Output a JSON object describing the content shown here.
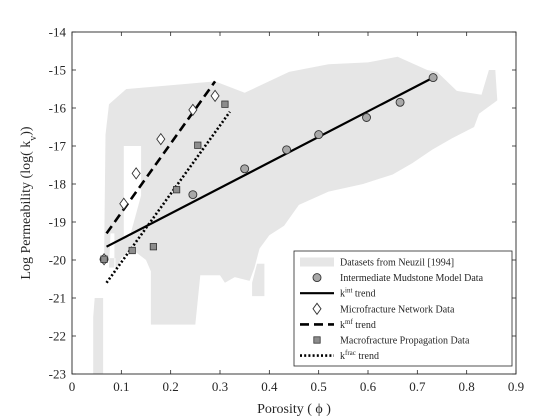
{
  "chart_data": {
    "type": "scatter",
    "xlabel": "Porosity ( ϕ )",
    "ylabel": "Log Permeability (log( k",
    "ylabel_sub": "v",
    "ylabel_end": "))",
    "xlim": [
      0,
      0.9
    ],
    "ylim": [
      -23,
      -14
    ],
    "xticks": [
      0,
      0.1,
      0.2,
      0.3,
      0.4,
      0.5,
      0.6,
      0.7,
      0.8,
      0.9
    ],
    "xtick_labels": [
      "0",
      "0.1",
      "0.2",
      "0.3",
      "0.4",
      "0.5",
      "0.6",
      "0.7",
      "0.8",
      "0.9"
    ],
    "yticks": [
      -23,
      -22,
      -21,
      -20,
      -19,
      -18,
      -17,
      -16,
      -15,
      -14
    ],
    "ytick_labels": [
      "-23",
      "-22",
      "-21",
      "-20",
      "-19",
      "-18",
      "-17",
      "-16",
      "-15",
      "-14"
    ],
    "grid": false,
    "legend_position": "bottom-right",
    "region": {
      "name": "Datasets from Neuzil [1994]",
      "color": "#e6e6e6",
      "polygons": [
        [
          [
            0.068,
            -16.7
          ],
          [
            0.075,
            -15.9
          ],
          [
            0.11,
            -15.5
          ],
          [
            0.2,
            -15.4
          ],
          [
            0.29,
            -15.3
          ],
          [
            0.35,
            -15.6
          ],
          [
            0.44,
            -15.05
          ],
          [
            0.52,
            -14.85
          ],
          [
            0.6,
            -14.8
          ],
          [
            0.66,
            -14.65
          ],
          [
            0.72,
            -15.0
          ],
          [
            0.74,
            -15.05
          ],
          [
            0.78,
            -15.55
          ],
          [
            0.83,
            -15.65
          ],
          [
            0.845,
            -15.0
          ],
          [
            0.858,
            -15.0
          ],
          [
            0.862,
            -15.8
          ],
          [
            0.825,
            -16.15
          ],
          [
            0.815,
            -16.5
          ],
          [
            0.77,
            -16.8
          ],
          [
            0.73,
            -17.1
          ],
          [
            0.69,
            -17.45
          ],
          [
            0.65,
            -17.75
          ],
          [
            0.59,
            -18.0
          ],
          [
            0.52,
            -18.2
          ],
          [
            0.46,
            -18.55
          ],
          [
            0.43,
            -19.1
          ],
          [
            0.4,
            -19.35
          ],
          [
            0.38,
            -19.7
          ],
          [
            0.37,
            -20.2
          ],
          [
            0.36,
            -20.55
          ],
          [
            0.33,
            -20.45
          ],
          [
            0.31,
            -20.6
          ],
          [
            0.3,
            -20.4
          ],
          [
            0.26,
            -20.4
          ],
          [
            0.25,
            -21.7
          ],
          [
            0.16,
            -21.7
          ],
          [
            0.16,
            -20.3
          ],
          [
            0.15,
            -20.0
          ],
          [
            0.12,
            -19.7
          ],
          [
            0.1,
            -19.95
          ],
          [
            0.088,
            -20.3
          ],
          [
            0.088,
            -19.95
          ],
          [
            0.065,
            -19.95
          ]
        ],
        [
          [
            0.365,
            -20.6
          ],
          [
            0.375,
            -20.1
          ],
          [
            0.39,
            -20.1
          ],
          [
            0.39,
            -20.95
          ],
          [
            0.365,
            -20.95
          ]
        ],
        [
          [
            0.075,
            -20.2
          ],
          [
            0.078,
            -19.3
          ],
          [
            0.086,
            -19.3
          ],
          [
            0.086,
            -20.2
          ]
        ],
        [
          [
            0.043,
            -23.0
          ],
          [
            0.043,
            -21.5
          ],
          [
            0.046,
            -21.0
          ],
          [
            0.063,
            -21.0
          ],
          [
            0.063,
            -23.0
          ]
        ]
      ],
      "holes": [
        [
          [
            0.105,
            -17.0
          ],
          [
            0.14,
            -17.0
          ],
          [
            0.14,
            -18.3
          ],
          [
            0.117,
            -19.4
          ],
          [
            0.105,
            -19.4
          ]
        ]
      ]
    },
    "series": [
      {
        "name": "Intermediate Mudstone Model Data",
        "marker": "circle",
        "color": "#a8a8a8",
        "x": [
          0.065,
          0.245,
          0.35,
          0.435,
          0.5,
          0.597,
          0.665,
          0.732
        ],
        "y": [
          -19.98,
          -18.28,
          -17.6,
          -17.1,
          -16.7,
          -16.25,
          -15.85,
          -15.2
        ],
        "trend": {
          "name": "trend",
          "sup": "int",
          "style": "solid",
          "x": [
            0.07,
            0.732
          ],
          "y": [
            -19.65,
            -15.2
          ]
        }
      },
      {
        "name": "Microfracture Network Data",
        "marker": "diamond",
        "color": "#ffffff",
        "x": [
          0.065,
          0.105,
          0.13,
          0.18,
          0.245,
          0.29
        ],
        "y": [
          -19.98,
          -18.52,
          -17.72,
          -16.82,
          -16.05,
          -15.68
        ],
        "trend": {
          "name": "trend",
          "sup": "mf",
          "style": "dashed",
          "x": [
            0.07,
            0.29
          ],
          "y": [
            -19.3,
            -15.3
          ]
        }
      },
      {
        "name": "Macrofracture Propagation Data",
        "marker": "square",
        "color": "#8c8c8c",
        "x": [
          0.065,
          0.122,
          0.165,
          0.212,
          0.255,
          0.31
        ],
        "y": [
          -19.98,
          -19.75,
          -19.65,
          -18.15,
          -16.98,
          -15.9
        ],
        "trend": {
          "name": "trend",
          "sup": "frac",
          "style": "dotted",
          "x": [
            0.07,
            0.32
          ],
          "y": [
            -20.6,
            -16.1
          ]
        }
      }
    ],
    "legend": [
      {
        "kind": "region",
        "label": "Datasets from Neuzil [1994]"
      },
      {
        "kind": "marker",
        "series": 0,
        "label": "Intermediate Mudstone Model Data"
      },
      {
        "kind": "line",
        "series": 0,
        "base": "k",
        "sup": "int",
        "suffix": " trend"
      },
      {
        "kind": "marker",
        "series": 1,
        "label": "Microfracture Network Data"
      },
      {
        "kind": "line",
        "series": 1,
        "base": "k",
        "sup": "mf",
        "suffix": " trend"
      },
      {
        "kind": "marker",
        "series": 2,
        "label": "Macrofracture Propagation Data"
      },
      {
        "kind": "line",
        "series": 2,
        "base": "k",
        "sup": "frac",
        "suffix": " trend"
      }
    ]
  }
}
